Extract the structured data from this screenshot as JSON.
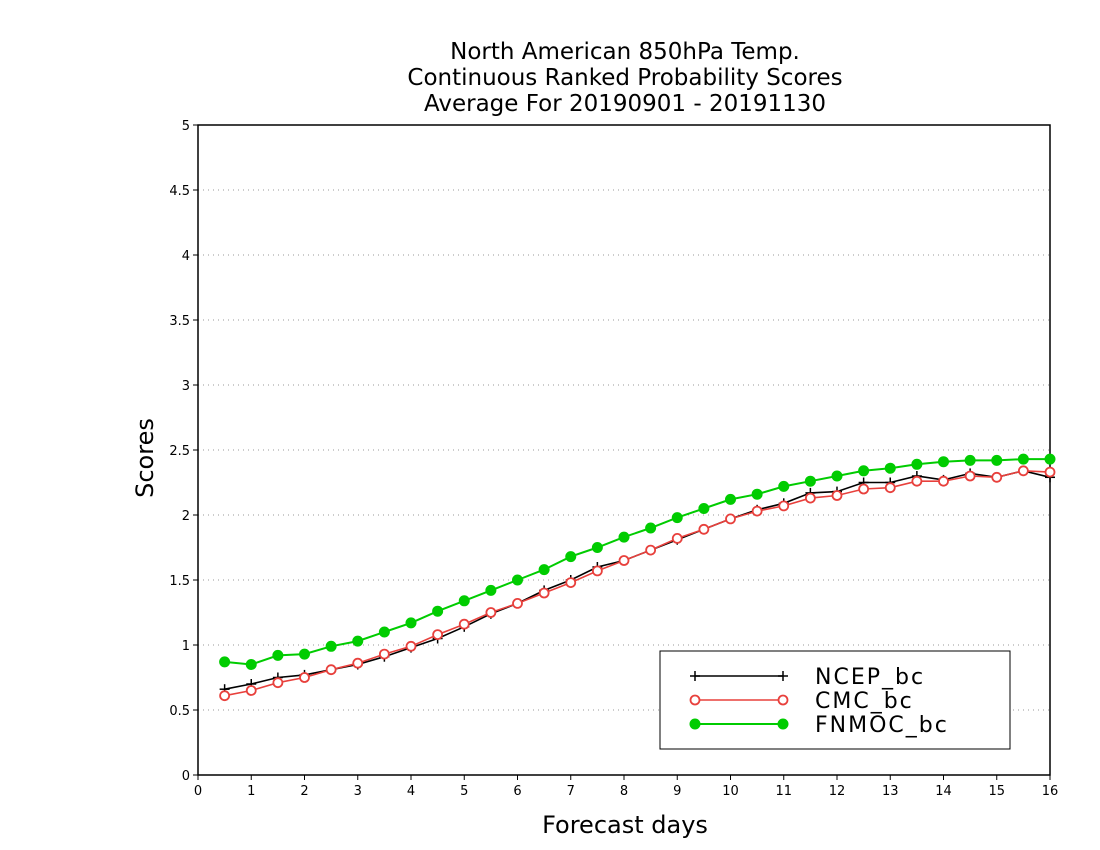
{
  "chart_data": {
    "type": "line",
    "title": [
      "North American 850hPa Temp.",
      "Continuous Ranked Probability Scores",
      "Average For 20190901 - 20191130"
    ],
    "xlabel": "Forecast days",
    "ylabel": "Scores",
    "xlim": [
      0,
      16
    ],
    "ylim": [
      0,
      5
    ],
    "x_ticks": [
      0,
      1,
      2,
      3,
      4,
      5,
      6,
      7,
      8,
      9,
      10,
      11,
      12,
      13,
      14,
      15,
      16
    ],
    "y_ticks": [
      "0",
      "0.5",
      "1",
      "1.5",
      "2",
      "2.5",
      "3",
      "3.5",
      "4",
      "4.5",
      "5"
    ],
    "grid": "horizontal dotted",
    "legend_position": "bottom-right",
    "x": [
      0.5,
      1,
      1.5,
      2,
      2.5,
      3,
      3.5,
      4,
      4.5,
      5,
      5.5,
      6,
      6.5,
      7,
      7.5,
      8,
      8.5,
      9,
      9.5,
      10,
      10.5,
      11,
      11.5,
      12,
      12.5,
      13,
      13.5,
      14,
      14.5,
      15,
      15.5,
      16
    ],
    "series": [
      {
        "name": "NCEP_bc",
        "color": "#000000",
        "marker": "plus",
        "values": [
          0.66,
          0.7,
          0.75,
          0.77,
          0.81,
          0.85,
          0.91,
          0.98,
          1.05,
          1.14,
          1.24,
          1.32,
          1.42,
          1.5,
          1.6,
          1.65,
          1.73,
          1.81,
          1.89,
          1.97,
          2.04,
          2.09,
          2.17,
          2.18,
          2.25,
          2.25,
          2.3,
          2.27,
          2.32,
          2.29,
          2.34,
          2.29
        ]
      },
      {
        "name": "CMC_bc",
        "color": "#e8403c",
        "marker": "open-circle",
        "values": [
          0.61,
          0.65,
          0.71,
          0.75,
          0.81,
          0.86,
          0.93,
          0.99,
          1.08,
          1.16,
          1.25,
          1.32,
          1.4,
          1.48,
          1.57,
          1.65,
          1.73,
          1.82,
          1.89,
          1.97,
          2.03,
          2.07,
          2.13,
          2.15,
          2.2,
          2.21,
          2.26,
          2.26,
          2.3,
          2.29,
          2.34,
          2.33
        ]
      },
      {
        "name": "FNMOC_bc",
        "color": "#00cc00",
        "marker": "filled-circle",
        "values": [
          0.87,
          0.85,
          0.92,
          0.93,
          0.99,
          1.03,
          1.1,
          1.17,
          1.26,
          1.34,
          1.42,
          1.5,
          1.58,
          1.68,
          1.75,
          1.83,
          1.9,
          1.98,
          2.05,
          2.12,
          2.16,
          2.22,
          2.26,
          2.3,
          2.34,
          2.36,
          2.39,
          2.41,
          2.42,
          2.42,
          2.43,
          2.43
        ]
      }
    ]
  }
}
